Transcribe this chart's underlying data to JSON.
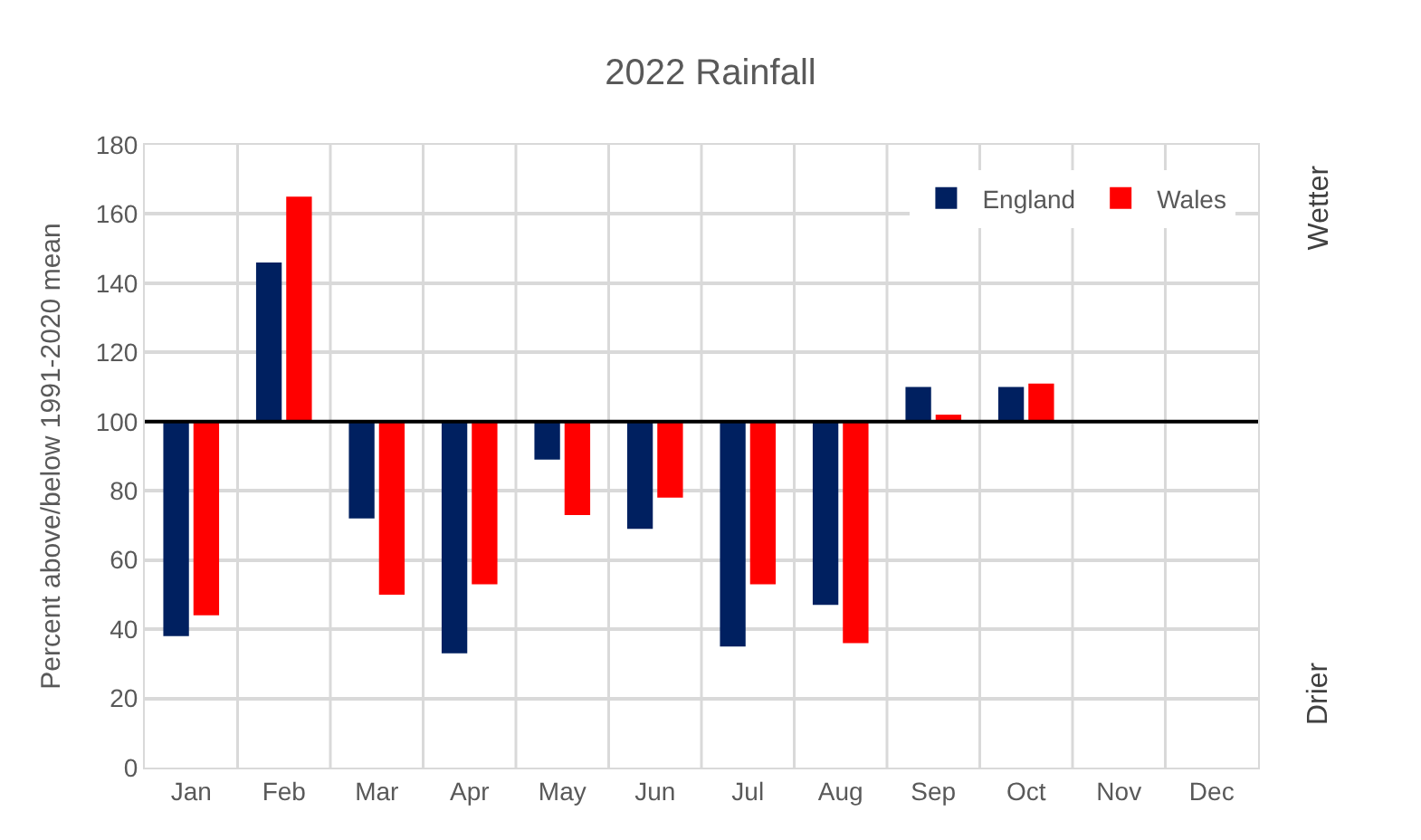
{
  "chart_data": {
    "type": "bar",
    "title": "2022 Rainfall",
    "ylabel": "Percent above/below 1991-2020 mean",
    "categories": [
      "Jan",
      "Feb",
      "Mar",
      "Apr",
      "May",
      "Jun",
      "Jul",
      "Aug",
      "Sep",
      "Oct",
      "Nov",
      "Dec"
    ],
    "series": [
      {
        "name": "England",
        "color": "#002060",
        "base": [
          100,
          100,
          100,
          100,
          100,
          100,
          100,
          100,
          100,
          100,
          null,
          null
        ],
        "values": [
          -62,
          46,
          -28,
          -67,
          -11,
          -31,
          -65,
          -53,
          10,
          10,
          null,
          null
        ]
      },
      {
        "name": "Wales",
        "color": "#ff0000",
        "base": [
          100,
          100,
          100,
          100,
          100,
          100,
          100,
          100,
          100,
          100,
          null,
          null
        ],
        "values": [
          -56,
          65,
          -50,
          -47,
          -27,
          -22,
          -47,
          -64,
          2,
          11,
          null,
          null
        ]
      }
    ],
    "ylim": [
      0,
      180
    ],
    "yticks": [
      0,
      20,
      40,
      60,
      80,
      100,
      120,
      140,
      160,
      180
    ],
    "ref_lines": [
      {
        "axis": "y",
        "value": 100,
        "color": "#000000"
      }
    ],
    "annotations": [
      "Wetter",
      "Drier"
    ],
    "grid": true,
    "legend": "top right"
  }
}
